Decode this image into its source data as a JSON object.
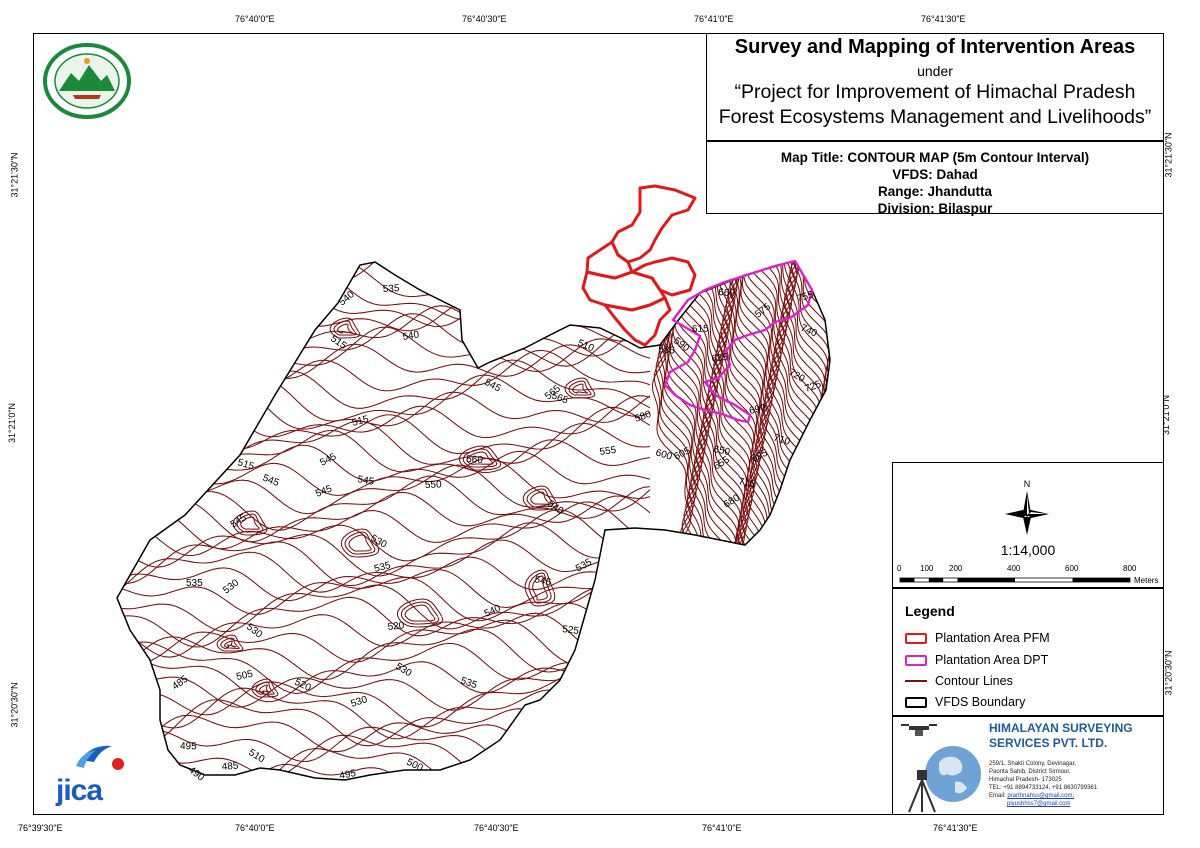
{
  "map": {
    "top_coords": [
      "76°40'0\"E",
      "76°40'30\"E",
      "76°41'0\"E",
      "76°41'30\"E"
    ],
    "bottom_coords": [
      "76°39'30\"E",
      "76°40'0\"E",
      "76°40'30\"E",
      "76°41'0\"E",
      "76°41'30\"E"
    ],
    "left_coords": [
      "31°21'30\"N",
      "31°21'0\"N",
      "31°20'30\"N"
    ],
    "right_coords": [
      "31°21'30\"N",
      "31°21'0\"N",
      "31°20'30\"N"
    ],
    "colors": {
      "contour": "#7a1010",
      "pfm": "#e01a1a",
      "dpt": "#e020c8",
      "boundary": "#000000"
    },
    "contour_labels": [
      "540",
      "535",
      "515",
      "540",
      "545",
      "515",
      "545",
      "545",
      "515",
      "545",
      "545",
      "545",
      "560",
      "565",
      "550",
      "540",
      "555",
      "530",
      "535",
      "510",
      "580",
      "600",
      "605",
      "650",
      "655",
      "660",
      "575",
      "615",
      "590",
      "635",
      "720",
      "690",
      "740",
      "725",
      "710",
      "695",
      "715",
      "680",
      "585",
      "530",
      "535",
      "530",
      "520",
      "530",
      "505",
      "520",
      "530",
      "535",
      "540",
      "545",
      "535",
      "525",
      "485",
      "495",
      "490",
      "485",
      "510",
      "495",
      "500",
      "755",
      "565"
    ]
  },
  "title": {
    "main": "Survey and Mapping of Intervention Areas",
    "under": "under",
    "project_line1": "“Project for Improvement of Himachal Pradesh",
    "project_line2": "Forest Ecosystems Management and Livelihoods”"
  },
  "info": {
    "map_title": "Map Title: CONTOUR MAP (5m Contour Interval)",
    "vfds": "VFDS: Dahad",
    "range": "Range: Jhandutta",
    "division": "Division: Bilaspur"
  },
  "scale": {
    "north": "N",
    "ratio": "1:14,000",
    "labels": [
      "0",
      "100",
      "200",
      "400",
      "600",
      "800"
    ],
    "unit": "Meters"
  },
  "legend": {
    "title": "Legend",
    "items": [
      {
        "label": "Plantation Area PFM",
        "color": "#e01a1a"
      },
      {
        "label": "Plantation Area DPT",
        "color": "#e020c8"
      },
      {
        "label": "Contour Lines",
        "color": "#7a1010"
      },
      {
        "label": "VFDS Boundary",
        "color": "#000000"
      }
    ]
  },
  "company": {
    "name_line1": "HIMALAYAN SURVEYING",
    "name_line2": "SERVICES PVT. LTD.",
    "addr1": "259/1, Shakti Colony, Devinagar,",
    "addr2": "Paonta Sahib, District Sirmour,",
    "addr3": "Himachal Pradesh- 173025",
    "tel": "TEL: +91 8894733124, +91 8630799361",
    "email_label": "Email: ",
    "email1": "prarthnahss@gmail.com,",
    "email2": "piyushhss7@gmail.com"
  },
  "logos": {
    "jica": "JICA"
  }
}
